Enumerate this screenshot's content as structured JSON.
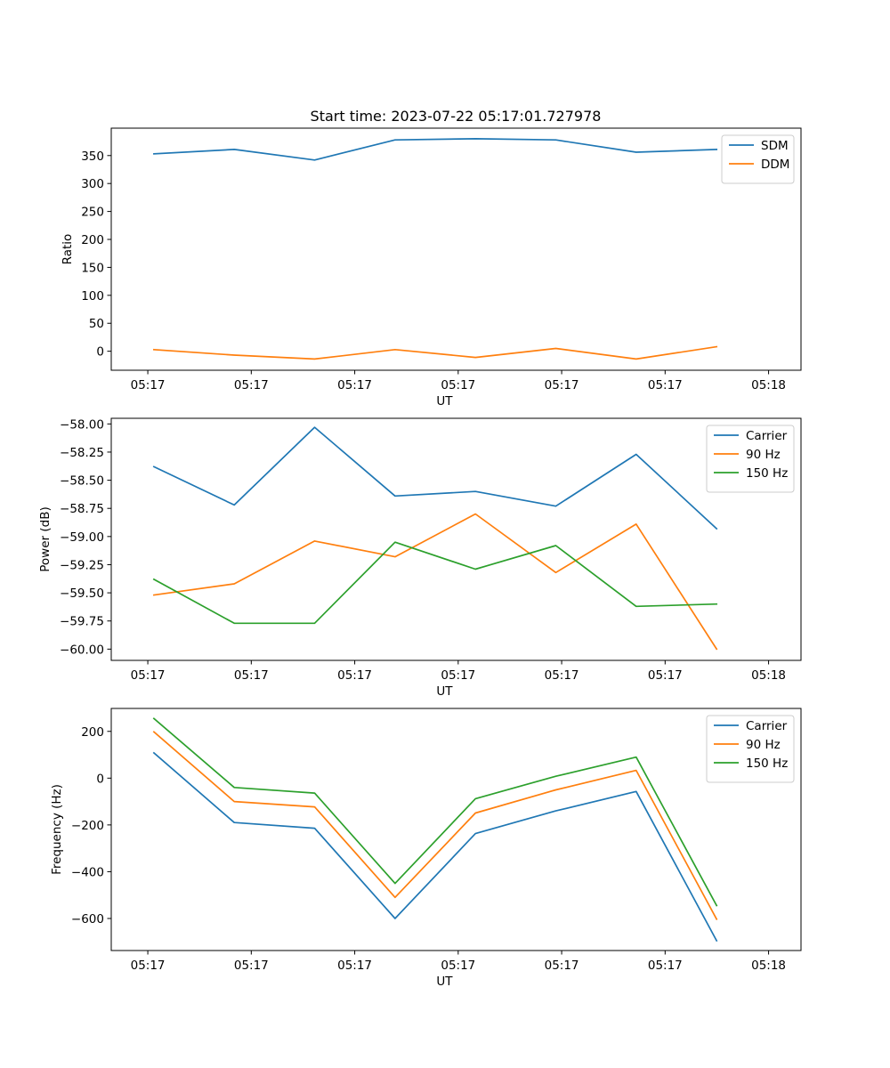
{
  "figure_title": "Start time: 2023-07-22 05:17:01.727978",
  "colors": {
    "blue": "#1f77b4",
    "orange": "#ff7f0e",
    "green": "#2ca02c"
  },
  "chart_data": [
    {
      "type": "line",
      "title": "Start time: 2023-07-22 05:17:01.727978",
      "xlabel": "UT",
      "ylabel": "Ratio",
      "x_tick_labels": [
        "05:17",
        "05:17",
        "05:17",
        "05:17",
        "05:17",
        "05:17",
        "05:18"
      ],
      "x_index": [
        1,
        2,
        3,
        4,
        5,
        6,
        7,
        8
      ],
      "xlim": [
        0.47,
        9.05
      ],
      "y_ticks": [
        0,
        50,
        100,
        150,
        200,
        250,
        300,
        350
      ],
      "ylim": [
        -34,
        399
      ],
      "legend_position": "upper-right",
      "series": [
        {
          "name": "SDM",
          "color": "#1f77b4",
          "values": [
            353,
            361,
            342,
            378,
            380,
            378,
            356,
            361
          ]
        },
        {
          "name": "DDM",
          "color": "#ff7f0e",
          "values": [
            3,
            -7,
            -14,
            3,
            -11,
            5,
            -14,
            8
          ]
        }
      ]
    },
    {
      "type": "line",
      "xlabel": "UT",
      "ylabel": "Power (dB)",
      "x_tick_labels": [
        "05:17",
        "05:17",
        "05:17",
        "05:17",
        "05:17",
        "05:17",
        "05:18"
      ],
      "x_index": [
        1,
        2,
        3,
        4,
        5,
        6,
        7,
        8
      ],
      "xlim": [
        0.47,
        9.05
      ],
      "y_ticks": [
        -60.0,
        -59.75,
        -59.5,
        -59.25,
        -59.0,
        -58.75,
        -58.5,
        -58.25,
        -58.0
      ],
      "y_tick_labels": [
        "−60.00",
        "−59.75",
        "−59.50",
        "−59.25",
        "−59.00",
        "−58.75",
        "−58.50",
        "−58.25",
        "−58.00"
      ],
      "ylim": [
        -60.1,
        -57.95
      ],
      "legend_position": "upper-right",
      "series": [
        {
          "name": "Carrier",
          "color": "#1f77b4",
          "values": [
            -58.38,
            -58.72,
            -58.03,
            -58.64,
            -58.6,
            -58.73,
            -58.27,
            -58.93
          ]
        },
        {
          "name": "90 Hz",
          "color": "#ff7f0e",
          "values": [
            -59.52,
            -59.42,
            -59.04,
            -59.18,
            -58.8,
            -59.32,
            -58.89,
            -60.0
          ]
        },
        {
          "name": "150 Hz",
          "color": "#2ca02c",
          "values": [
            -59.38,
            -59.77,
            -59.77,
            -59.05,
            -59.29,
            -59.08,
            -59.62,
            -59.6
          ]
        }
      ]
    },
    {
      "type": "line",
      "xlabel": "UT",
      "ylabel": "Frequency (Hz)",
      "x_tick_labels": [
        "05:17",
        "05:17",
        "05:17",
        "05:17",
        "05:17",
        "05:17",
        "05:18"
      ],
      "x_index": [
        1,
        2,
        3,
        4,
        5,
        6,
        7,
        8
      ],
      "xlim": [
        0.47,
        9.05
      ],
      "y_ticks": [
        -600,
        -400,
        -200,
        0,
        200
      ],
      "y_tick_labels": [
        "−600",
        "−400",
        "−200",
        "0",
        "200"
      ],
      "ylim": [
        -737,
        298
      ],
      "legend_position": "upper-right",
      "series": [
        {
          "name": "Carrier",
          "color": "#1f77b4",
          "values": [
            108,
            -190,
            -214,
            -600,
            -237,
            -140,
            -57,
            -695
          ]
        },
        {
          "name": "90 Hz",
          "color": "#ff7f0e",
          "values": [
            198,
            -100,
            -123,
            -510,
            -149,
            -50,
            33,
            -603
          ]
        },
        {
          "name": "150 Hz",
          "color": "#2ca02c",
          "values": [
            255,
            -40,
            -64,
            -450,
            -88,
            8,
            90,
            -545
          ]
        }
      ]
    }
  ]
}
